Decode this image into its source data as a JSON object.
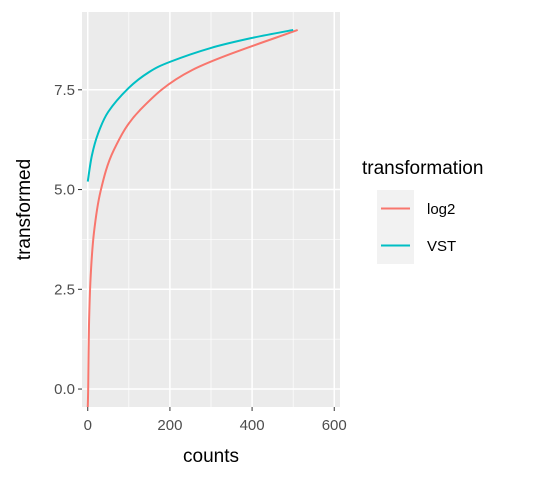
{
  "chart_data": {
    "type": "line",
    "xlabel": "counts",
    "ylabel": "transformed",
    "xlim": [
      -14,
      614
    ],
    "ylim": [
      -0.45,
      9.45
    ],
    "x_ticks": [
      0,
      200,
      400,
      600
    ],
    "x_tick_labels": [
      "0",
      "200",
      "400",
      "600"
    ],
    "y_ticks": [
      0,
      2.5,
      5,
      7.5
    ],
    "y_tick_labels": [
      "0.0",
      "2.5",
      "5.0",
      "7.5"
    ],
    "grid": true,
    "legend_position": "right",
    "legend_title": "transformation",
    "series": [
      {
        "name": "log2",
        "color": "#F8766D",
        "x": [
          0,
          1,
          3,
          7,
          15,
          31,
          63,
          127,
          255,
          511
        ],
        "y": [
          -0.45,
          0,
          1.58,
          2.81,
          3.91,
          4.95,
          5.98,
          6.99,
          8.0,
          9.0
        ]
      },
      {
        "name": "VST",
        "color": "#00BFC4",
        "x": [
          0,
          10,
          25,
          50,
          100,
          150,
          200,
          300,
          400,
          500
        ],
        "y": [
          5.2,
          5.85,
          6.4,
          6.95,
          7.55,
          7.95,
          8.2,
          8.55,
          8.8,
          9.0
        ]
      }
    ]
  }
}
